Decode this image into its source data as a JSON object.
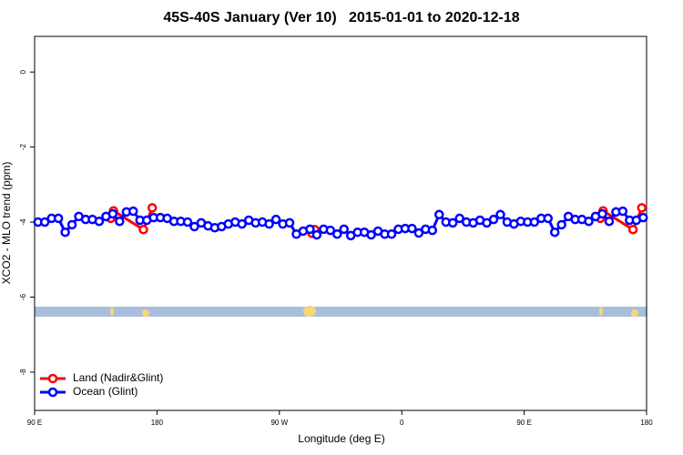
{
  "chart_data": {
    "type": "line",
    "title": "45S-40S January (Ver 10)   2015-01-01 to 2020-12-18",
    "x_label": "Longitude (deg E)",
    "y_label": "XCO2 - MLO trend (ppm)",
    "xlim": [
      90,
      540
    ],
    "ylim": [
      -9.02,
      0.95
    ],
    "xticks": [
      {
        "value": 90,
        "label": "90 E"
      },
      180,
      {
        "value": 270,
        "label": "90 W"
      },
      {
        "value": 360,
        "label": "0"
      },
      {
        "value": 450,
        "label": "90 E"
      },
      {
        "value": 540,
        "label": "180"
      }
    ],
    "yticks": [
      0,
      -2,
      -4,
      -6,
      -8
    ],
    "legend": "bottom-left",
    "series": [
      {
        "name": "Land (Nadir&Glint)",
        "color": "#ff0000",
        "x": [
          146,
          148,
          170,
          176.5,
          290,
          294,
          296,
          400,
          506,
          508,
          530,
          536.5
        ],
        "values": [
          -3.9,
          -3.7,
          -4.2,
          -3.62,
          null,
          -4.3,
          -4.2,
          null,
          -3.9,
          -3.7,
          -4.2,
          -3.62
        ]
      },
      {
        "name": "Ocean (Glint)",
        "color": "#0000ff",
        "x": [
          92.5,
          97.5,
          102.5,
          107.5,
          112.5,
          117.5,
          122.5,
          127.5,
          132.5,
          137.5,
          142.5,
          147.5,
          152.5,
          157.5,
          162.5,
          167.5,
          172.5,
          177.5,
          182.5,
          187.5,
          192.5,
          197.5,
          202.5,
          207.5,
          212.5,
          217.5,
          222.5,
          227.5,
          232.5,
          237.5,
          242.5,
          247.5,
          252.5,
          257.5,
          262.5,
          267.5,
          272.5,
          277.5,
          282.5,
          287.5,
          292.5,
          297.5,
          302.5,
          307.5,
          312.5,
          317.5,
          322.5,
          327.5,
          332.5,
          337.5,
          342.5,
          347.5,
          352.5,
          357.5,
          362.5,
          367.5,
          372.5,
          377.5,
          382.5,
          387.5,
          392.5,
          397.5,
          402.5,
          407.5,
          412.5,
          417.5,
          422.5,
          427.5,
          432.5,
          437.5,
          442.5,
          447.5,
          452.5,
          457.5,
          462.5,
          467.5,
          472.5,
          477.5,
          482.5,
          487.5,
          492.5,
          497.5,
          502.5,
          507.5,
          512.5,
          517.5,
          522.5,
          527.5,
          532.5,
          537.5
        ],
        "values": [
          -4.0,
          -4.0,
          -3.9,
          -3.9,
          -4.27,
          -4.07,
          -3.85,
          -3.93,
          -3.93,
          -3.98,
          -3.85,
          -3.78,
          -3.98,
          -3.73,
          -3.71,
          -3.95,
          -3.95,
          -3.88,
          -3.88,
          -3.9,
          -3.98,
          -3.98,
          -4.0,
          -4.12,
          -4.02,
          -4.1,
          -4.15,
          -4.12,
          -4.05,
          -4.0,
          -4.05,
          -3.95,
          -4.02,
          -4.0,
          -4.05,
          -3.93,
          -4.05,
          -4.02,
          -4.32,
          -4.24,
          -4.19,
          -4.34,
          -4.19,
          -4.22,
          -4.32,
          -4.19,
          -4.36,
          -4.27,
          -4.27,
          -4.34,
          -4.24,
          -4.32,
          -4.32,
          -4.19,
          -4.17,
          -4.17,
          -4.29,
          -4.19,
          -4.22,
          -3.8,
          -4.0,
          -4.02,
          -3.9,
          -4.0,
          -4.02,
          -3.95,
          -4.02,
          -3.93,
          -3.8,
          -4.0,
          -4.05,
          -3.98,
          -4.0,
          -4.0,
          -3.9,
          -3.9,
          -4.27,
          -4.07,
          -3.85,
          -3.93,
          -3.93,
          -3.98,
          -3.85,
          -3.78,
          -3.98,
          -3.73,
          -3.71,
          -3.95,
          -3.95,
          -3.88
        ]
      }
    ]
  }
}
